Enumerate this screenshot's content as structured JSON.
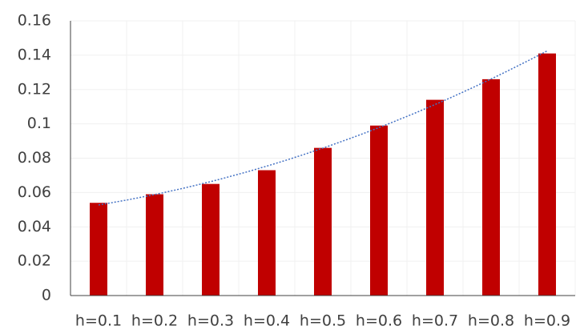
{
  "chart_data": {
    "type": "bar",
    "categories": [
      "h=0.1",
      "h=0.2",
      "h=0.3",
      "h=0.4",
      "h=0.5",
      "h=0.6",
      "h=0.7",
      "h=0.8",
      "h=0.9"
    ],
    "values": [
      0.054,
      0.059,
      0.065,
      0.073,
      0.086,
      0.099,
      0.114,
      0.126,
      0.141
    ],
    "color": "#c00000",
    "ylim": [
      0,
      0.16
    ],
    "yticks": [
      0,
      0.02,
      0.04,
      0.06,
      0.08,
      0.1,
      0.12,
      0.14,
      0.16
    ],
    "grid": true,
    "trendline": {
      "type": "polynomial",
      "order": 2,
      "color": "#4472c4"
    }
  }
}
